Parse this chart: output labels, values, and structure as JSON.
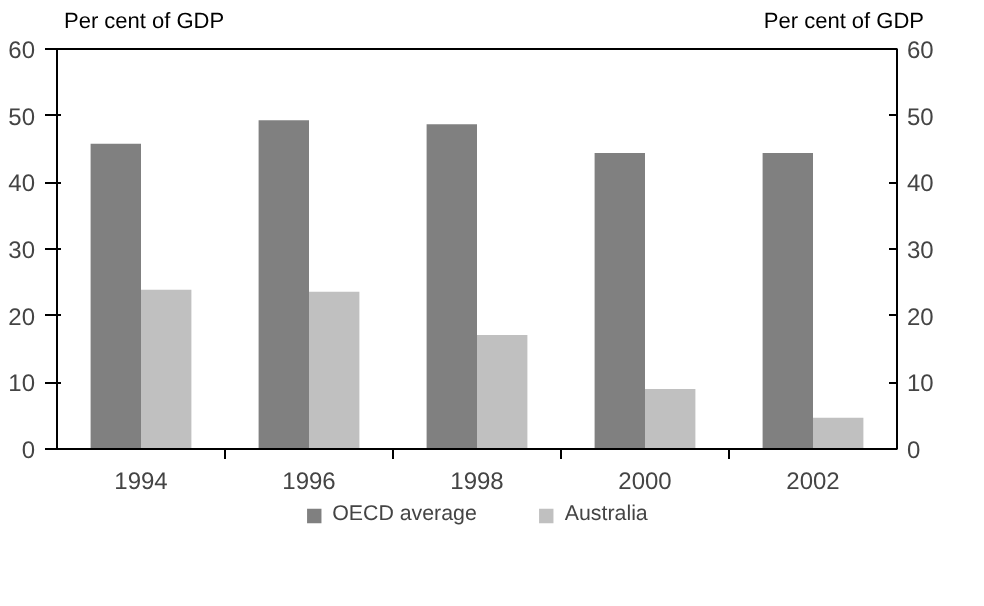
{
  "chart_data": {
    "type": "bar",
    "ylabel": "Per cent of GDP",
    "y2label": "Per cent of GDP",
    "categories": [
      "1994",
      "1996",
      "1998",
      "2000",
      "2002"
    ],
    "series": [
      {
        "name": "OECD average",
        "color": "#808080",
        "values": [
          45.8,
          49.3,
          48.7,
          44.4,
          44.4
        ]
      },
      {
        "name": "Australia",
        "color": "#c0c0c0",
        "values": [
          23.9,
          23.6,
          17.1,
          9.0,
          4.7
        ]
      }
    ],
    "ylim": [
      0,
      60
    ],
    "yticks": [
      0,
      10,
      20,
      30,
      40,
      50,
      60
    ],
    "y2lim": [
      0,
      60
    ],
    "y2ticks": [
      0,
      10,
      20,
      30,
      40,
      50,
      60
    ],
    "grid": false,
    "legend": "bottom"
  }
}
